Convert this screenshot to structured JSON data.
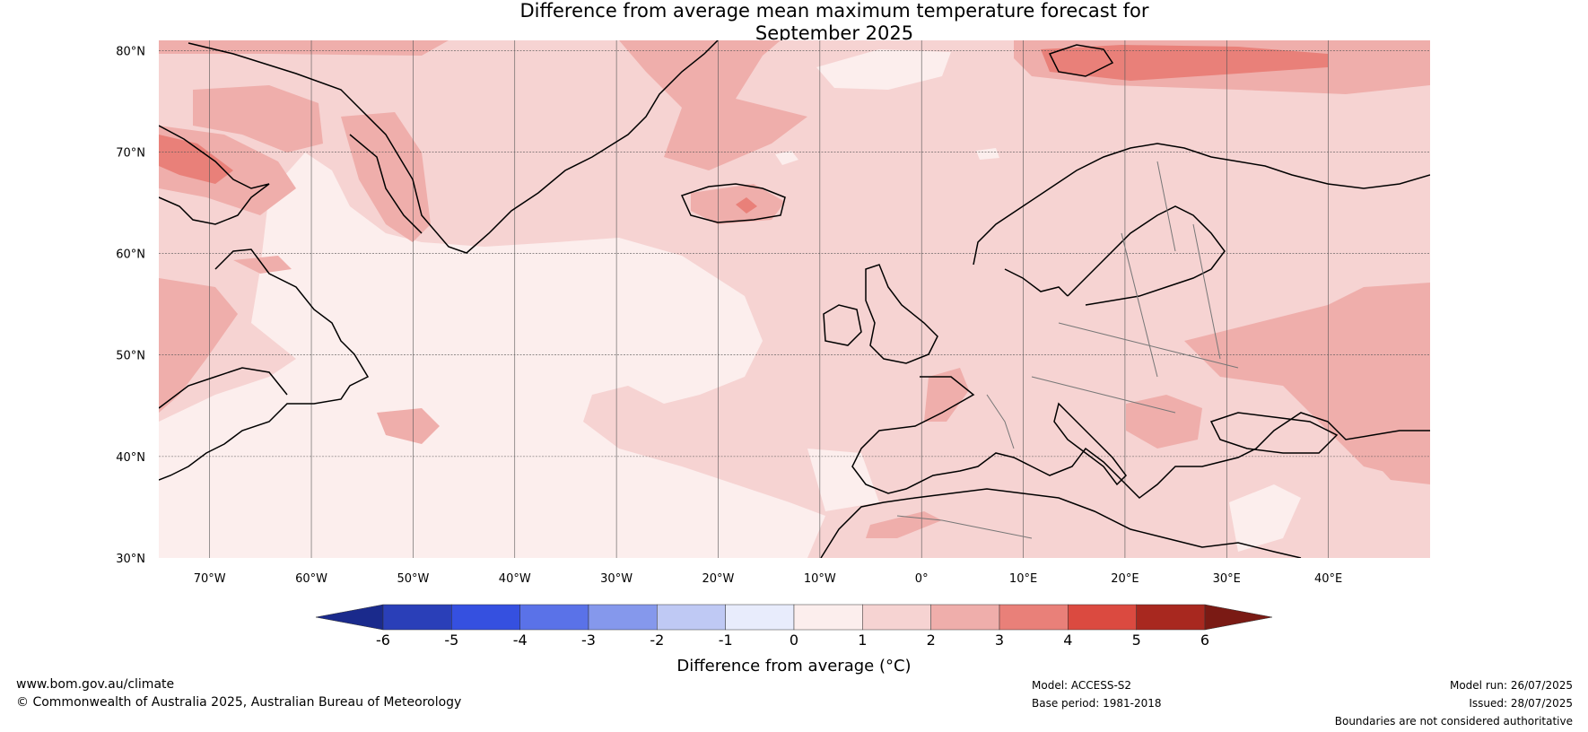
{
  "title": {
    "line1": "Difference from average mean maximum temperature forecast for",
    "line2": "September 2025"
  },
  "map": {
    "lat_ticks": [
      "80°N",
      "70°N",
      "60°N",
      "50°N",
      "40°N",
      "30°N"
    ],
    "lon_ticks": [
      "70°W",
      "60°W",
      "50°W",
      "40°W",
      "30°W",
      "20°W",
      "10°W",
      "0°",
      "10°E",
      "20°E",
      "30°E",
      "40°E"
    ],
    "lat_values": [
      80,
      70,
      60,
      50,
      40,
      30
    ],
    "lon_values": [
      -70,
      -60,
      -50,
      -40,
      -30,
      -20,
      -10,
      0,
      10,
      20,
      30,
      40
    ],
    "extent": {
      "lon_min": -75,
      "lon_max": 50,
      "lat_min": 30,
      "lat_max": 81
    }
  },
  "colorbar": {
    "labels": [
      "-6",
      "-5",
      "-4",
      "-3",
      "-2",
      "-1",
      "0",
      "1",
      "2",
      "3",
      "4",
      "5",
      "6"
    ],
    "colors": [
      "#1a2a8c",
      "#2a3fb8",
      "#3550e0",
      "#5a72e8",
      "#8598ec",
      "#bfc9f4",
      "#e8ecfc",
      "#fceeed",
      "#f6d3d2",
      "#efaeab",
      "#e98079",
      "#db4a40",
      "#a8281f",
      "#7a1a14"
    ],
    "label": "Difference from average (°C)"
  },
  "footer": {
    "url": "www.bom.gov.au/climate",
    "copyright": "© Commonwealth of Australia 2025, Australian Bureau of Meteorology",
    "model": "Model: ACCESS-S2",
    "base_period": "Base period: 1981-2018",
    "model_run": "Model run: 26/07/2025",
    "issued": "Issued: 28/07/2025",
    "boundaries": "Boundaries are not considered authoritative"
  }
}
